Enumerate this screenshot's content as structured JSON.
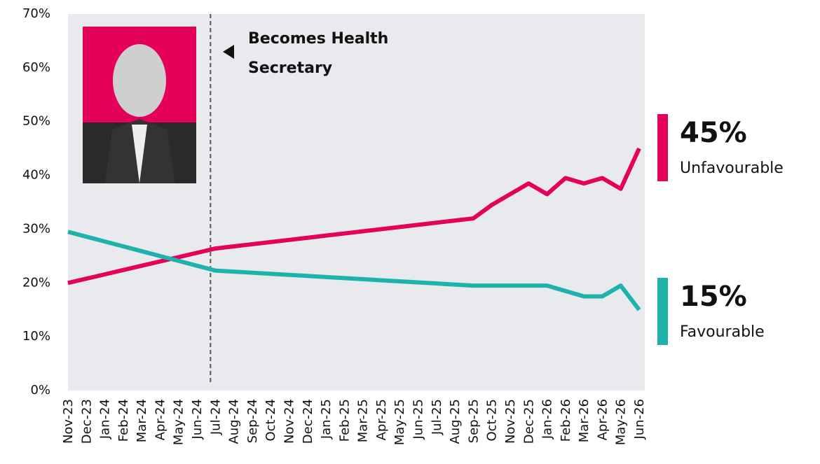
{
  "chart_data": {
    "type": "line",
    "annotation": "Becomes Health Secretary",
    "annotation_at": "Jul-24",
    "categories": [
      "Nov-23",
      "Dec-23",
      "Jan-24",
      "Feb-24",
      "Mar-24",
      "Apr-24",
      "May-24",
      "Jun-24",
      "Jul-24",
      "Aug-24",
      "Sep-24",
      "Oct-24",
      "Nov-24",
      "Dec-24",
      "Jan-25",
      "Feb-25",
      "Mar-25",
      "Apr-25",
      "May-25",
      "Jun-25",
      "Jul-25",
      "Aug-25",
      "Sep-25",
      "Oct-25",
      "Nov-25",
      "Dec-25",
      "Jan-26",
      "Feb-26",
      "Mar-26",
      "Apr-26",
      "May-26",
      "Jun-26"
    ],
    "series": [
      {
        "name": "Unfavourable",
        "color": "#e5005a",
        "end_label": "45%",
        "values": [
          20,
          20.8,
          21.6,
          22.4,
          23.2,
          24,
          24.8,
          25.6,
          26.4,
          26.8,
          27.2,
          27.6,
          28,
          28.4,
          28.8,
          29.2,
          29.6,
          30,
          30.4,
          30.8,
          31.2,
          31.6,
          32,
          34.5,
          36.5,
          38.5,
          36.5,
          39.5,
          38.5,
          39.5,
          37.5,
          45
        ]
      },
      {
        "name": "Favourable",
        "color": "#1fb2aa",
        "end_label": "15%",
        "values": [
          29.5,
          28.6,
          27.7,
          26.8,
          25.9,
          25,
          24.1,
          23.2,
          22.3,
          22.1,
          21.9,
          21.7,
          21.5,
          21.3,
          21.1,
          20.9,
          20.7,
          20.5,
          20.3,
          20.1,
          19.9,
          19.7,
          19.5,
          19.5,
          19.5,
          19.5,
          19.5,
          18.5,
          17.5,
          17.5,
          19.5,
          15
        ]
      }
    ],
    "ylim": [
      0,
      70
    ],
    "yticks": [
      {
        "value": 0,
        "label": "0%"
      },
      {
        "value": 10,
        "label": "10%"
      },
      {
        "value": 20,
        "label": "20%"
      },
      {
        "value": 30,
        "label": "30%"
      },
      {
        "value": 40,
        "label": "40%"
      },
      {
        "value": 50,
        "label": "50%"
      },
      {
        "value": 60,
        "label": "60%"
      },
      {
        "value": 70,
        "label": "70%"
      }
    ]
  }
}
